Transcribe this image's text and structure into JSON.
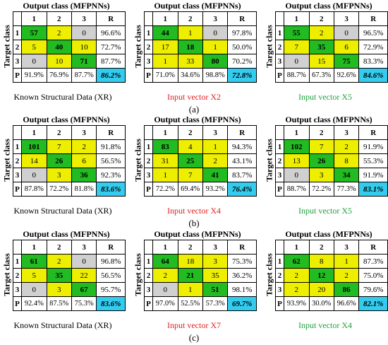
{
  "out_title": "Output class (MFPNNs)",
  "target_title": "Target class",
  "col_headers": [
    "1",
    "2",
    "3",
    "R"
  ],
  "row_headers": [
    "1",
    "2",
    "3",
    "P"
  ],
  "sublabels": [
    "(a)",
    "(b)",
    "(c)"
  ],
  "colors": {
    "correct": "#22bb22",
    "error": "#eeee00",
    "zero": "#d0d0d0",
    "overall": "#33ccee",
    "caption_red": "#e02020",
    "caption_green": "#20a040"
  },
  "chart_data": [
    {
      "type": "table",
      "caption": "Known Structural Data (XR)",
      "caption_color": "black",
      "matrix": [
        [
          "57",
          "2",
          "0"
        ],
        [
          "5",
          "40",
          "10"
        ],
        [
          "0",
          "10",
          "71"
        ]
      ],
      "recall": [
        "96.6%",
        "72.7%",
        "87.7%"
      ],
      "precision": [
        "91.9%",
        "76.9%",
        "87.7%"
      ],
      "overall": "86.2%"
    },
    {
      "type": "table",
      "caption": "Input vector X2",
      "caption_color": "red",
      "matrix": [
        [
          "44",
          "1",
          "0"
        ],
        [
          "17",
          "18",
          "1"
        ],
        [
          "1",
          "33",
          "80"
        ]
      ],
      "recall": [
        "97.8%",
        "50.0%",
        "70.2%"
      ],
      "precision": [
        "71.0%",
        "34.6%",
        "98.8%"
      ],
      "overall": "72.8%"
    },
    {
      "type": "table",
      "caption": "Input vector X5",
      "caption_color": "green",
      "matrix": [
        [
          "55",
          "2",
          "0"
        ],
        [
          "7",
          "35",
          "6"
        ],
        [
          "0",
          "15",
          "75"
        ]
      ],
      "recall": [
        "96.5%",
        "72.9%",
        "83.3%"
      ],
      "precision": [
        "88.7%",
        "67.3%",
        "92.6%"
      ],
      "overall": "84.6%"
    },
    {
      "type": "table",
      "caption": "Known Structural Data (XR)",
      "caption_color": "black",
      "matrix": [
        [
          "101",
          "7",
          "2"
        ],
        [
          "14",
          "26",
          "6"
        ],
        [
          "0",
          "3",
          "36"
        ]
      ],
      "recall": [
        "91.8%",
        "56.5%",
        "92.3%"
      ],
      "precision": [
        "87.8%",
        "72.2%",
        "81.8%"
      ],
      "overall": "83.6%"
    },
    {
      "type": "table",
      "caption": "Input vector X4",
      "caption_color": "red",
      "matrix": [
        [
          "83",
          "4",
          "1"
        ],
        [
          "31",
          "25",
          "2"
        ],
        [
          "1",
          "7",
          "41"
        ]
      ],
      "recall": [
        "94.3%",
        "43.1%",
        "83.7%"
      ],
      "precision": [
        "72.2%",
        "69.4%",
        "93.2%"
      ],
      "overall": "76.4%"
    },
    {
      "type": "table",
      "caption": "Input vector X5",
      "caption_color": "green",
      "matrix": [
        [
          "102",
          "7",
          "2"
        ],
        [
          "13",
          "26",
          "8"
        ],
        [
          "0",
          "3",
          "34"
        ]
      ],
      "recall": [
        "91.9%",
        "55.3%",
        "91.9%"
      ],
      "precision": [
        "88.7%",
        "72.2%",
        "77.3%"
      ],
      "overall": "83.1%"
    },
    {
      "type": "table",
      "caption": "Known Structural Data (XR)",
      "caption_color": "black",
      "matrix": [
        [
          "61",
          "2",
          "0"
        ],
        [
          "5",
          "35",
          "22"
        ],
        [
          "0",
          "3",
          "67"
        ]
      ],
      "recall": [
        "96.8%",
        "56.5%",
        "95.7%"
      ],
      "precision": [
        "92.4%",
        "87.5%",
        "75.3%"
      ],
      "overall": "83.6%"
    },
    {
      "type": "table",
      "caption": "Input vector X7",
      "caption_color": "red",
      "matrix": [
        [
          "64",
          "18",
          "3"
        ],
        [
          "2",
          "21",
          "35"
        ],
        [
          "0",
          "1",
          "51"
        ]
      ],
      "recall": [
        "75.3%",
        "36.2%",
        "98.1%"
      ],
      "precision": [
        "97.0%",
        "52.5%",
        "57.3%"
      ],
      "overall": "69.7%"
    },
    {
      "type": "table",
      "caption": "Input vector X4",
      "caption_color": "green",
      "matrix": [
        [
          "62",
          "8",
          "1"
        ],
        [
          "2",
          "12",
          "2"
        ],
        [
          "2",
          "20",
          "86"
        ]
      ],
      "recall": [
        "87.3%",
        "75.0%",
        "79.6%"
      ],
      "precision": [
        "93.9%",
        "30.0%",
        "96.6%"
      ],
      "overall": "82.1%"
    }
  ]
}
